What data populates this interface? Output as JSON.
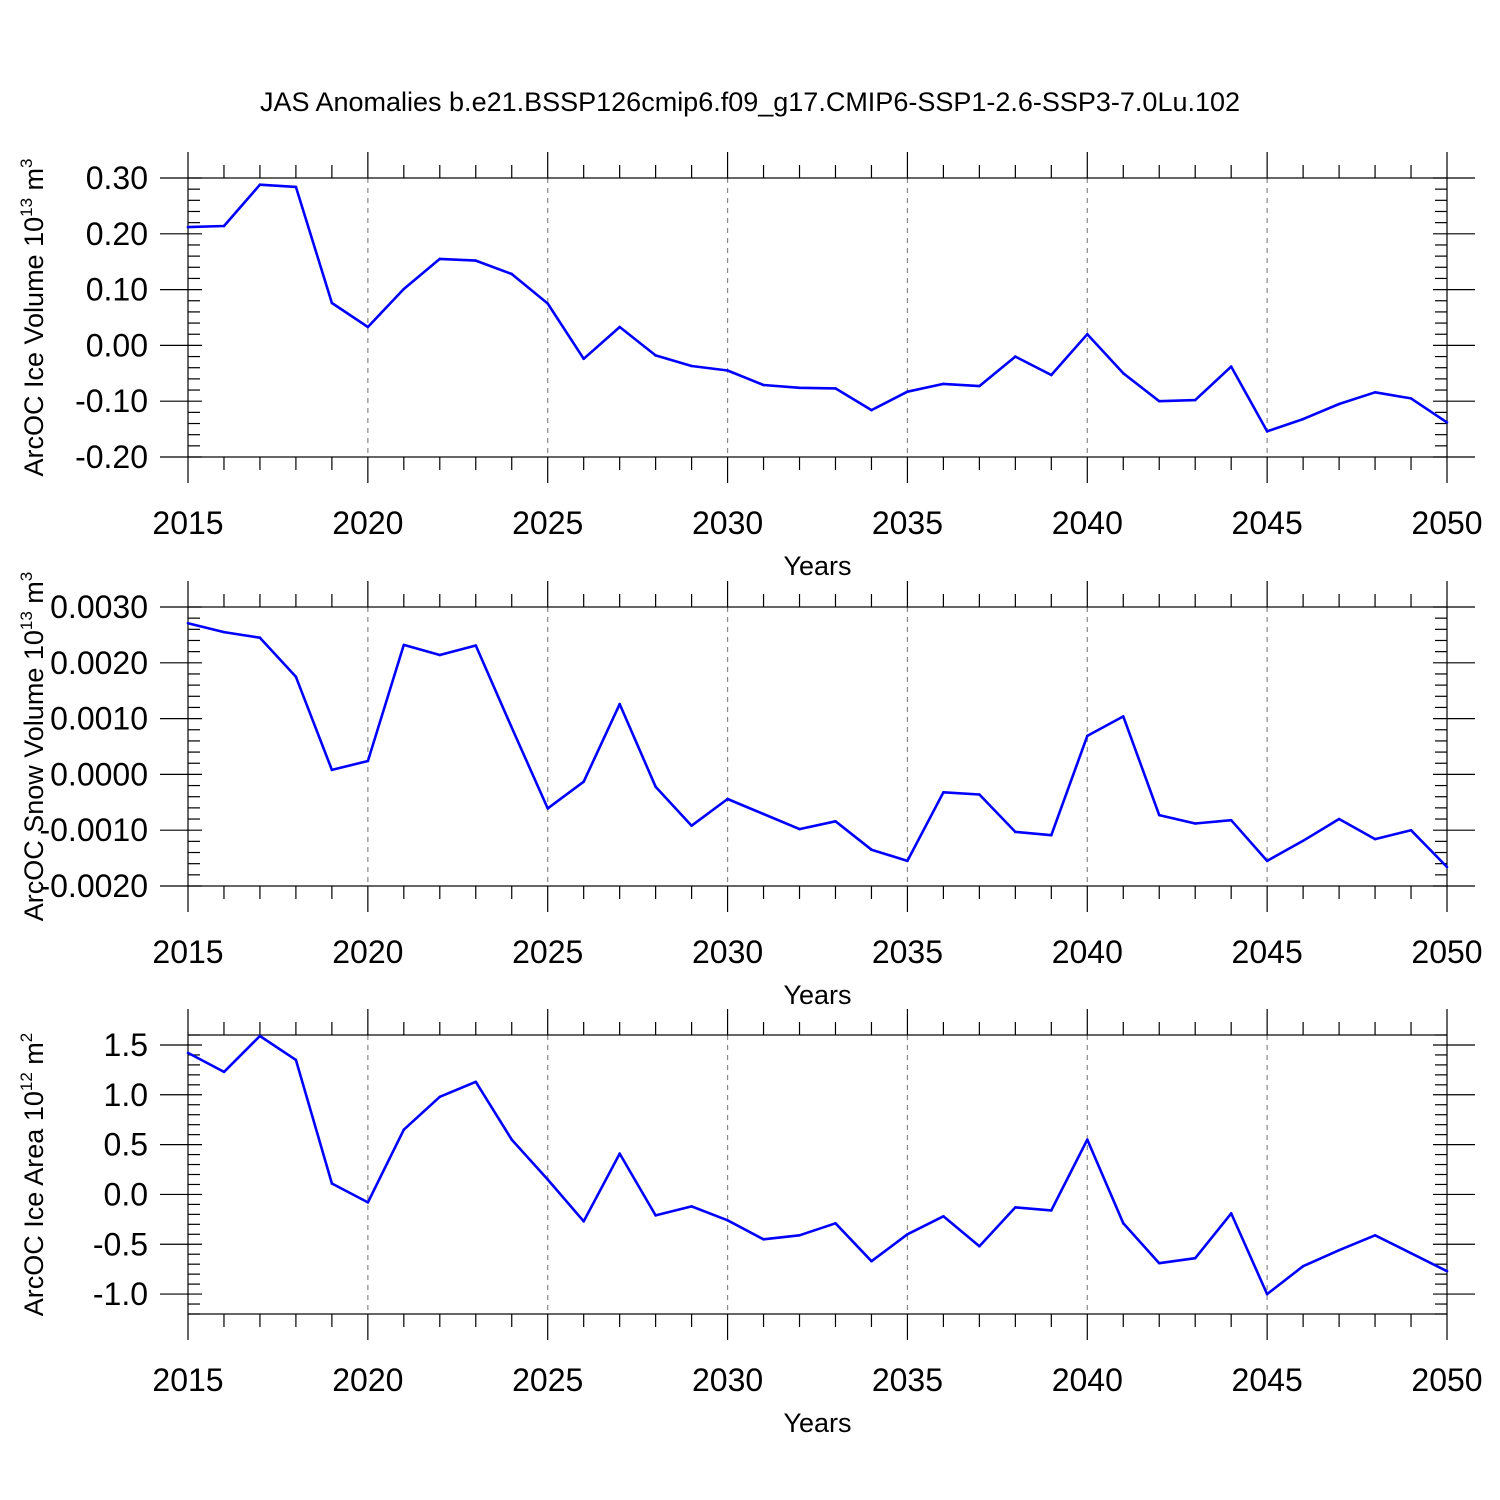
{
  "title": "JAS Anomalies b.e21.BSSP126cmip6.f09_g17.CMIP6-SSP1-2.6-SSP3-7.0Lu.102",
  "line_color": "#0000ff",
  "chart_data": [
    {
      "type": "line",
      "name": "ice-volume",
      "ylabel_main": "ArcOC Ice Volume 10",
      "ylabel_sup": "13",
      "ylabel_unit": " m",
      "ylabel_unit_sup": "3",
      "xlabel": "Years",
      "xlim": [
        2015,
        2050
      ],
      "ylim": [
        -0.2,
        0.3
      ],
      "yticks": [
        0.3,
        0.2,
        0.1,
        0.0,
        -0.1,
        -0.2
      ],
      "ytick_labels": [
        "0.30",
        "0.20",
        "0.10",
        "0.00",
        "-0.10",
        "-0.20"
      ],
      "xticks": [
        2015,
        2020,
        2025,
        2030,
        2035,
        2040,
        2045,
        2050
      ],
      "xtick_labels": [
        "2015",
        "2020",
        "2025",
        "2030",
        "2035",
        "2040",
        "2045",
        "2050"
      ],
      "x": [
        2015,
        2016,
        2017,
        2018,
        2019,
        2020,
        2021,
        2022,
        2023,
        2024,
        2025,
        2026,
        2027,
        2028,
        2029,
        2030,
        2031,
        2032,
        2033,
        2034,
        2035,
        2036,
        2037,
        2038,
        2039,
        2040,
        2041,
        2042,
        2043,
        2044,
        2045,
        2046,
        2047,
        2048,
        2049,
        2050
      ],
      "values": [
        0.212,
        0.214,
        0.288,
        0.284,
        0.076,
        0.033,
        0.101,
        0.155,
        0.152,
        0.128,
        0.075,
        -0.024,
        0.033,
        -0.018,
        -0.037,
        -0.045,
        -0.071,
        -0.076,
        -0.077,
        -0.116,
        -0.083,
        -0.069,
        -0.073,
        -0.02,
        -0.053,
        0.02,
        -0.05,
        -0.1,
        -0.098,
        -0.038,
        -0.154,
        -0.132,
        -0.105,
        -0.084,
        -0.095,
        -0.138
      ]
    },
    {
      "type": "line",
      "name": "snow-volume",
      "ylabel_main": "ArcOC Snow Volume 10",
      "ylabel_sup": "13",
      "ylabel_unit": " m",
      "ylabel_unit_sup": "3",
      "xlabel": "Years",
      "xlim": [
        2015,
        2050
      ],
      "ylim": [
        -0.002,
        0.003
      ],
      "yticks": [
        0.003,
        0.002,
        0.001,
        0.0,
        -0.001,
        -0.002
      ],
      "ytick_labels": [
        "0.0030",
        "0.0020",
        "0.0010",
        "0.0000",
        "-0.0010",
        "-0.0020"
      ],
      "xticks": [
        2015,
        2020,
        2025,
        2030,
        2035,
        2040,
        2045,
        2050
      ],
      "xtick_labels": [
        "2015",
        "2020",
        "2025",
        "2030",
        "2035",
        "2040",
        "2045",
        "2050"
      ],
      "x": [
        2015,
        2016,
        2017,
        2018,
        2019,
        2020,
        2021,
        2022,
        2023,
        2024,
        2025,
        2026,
        2027,
        2028,
        2029,
        2030,
        2031,
        2032,
        2033,
        2034,
        2035,
        2036,
        2037,
        2038,
        2039,
        2040,
        2041,
        2042,
        2043,
        2044,
        2045,
        2046,
        2047,
        2048,
        2049,
        2050
      ],
      "values": [
        0.00271,
        0.00255,
        0.00245,
        0.00175,
        8e-05,
        0.00024,
        0.00232,
        0.00214,
        0.00231,
        0.00084,
        -0.00061,
        -0.00013,
        0.00126,
        -0.00022,
        -0.00092,
        -0.00044,
        -0.00071,
        -0.00098,
        -0.00084,
        -0.00135,
        -0.00155,
        -0.00032,
        -0.00036,
        -0.00103,
        -0.00109,
        0.00069,
        0.00104,
        -0.00073,
        -0.00088,
        -0.00082,
        -0.00155,
        -0.00119,
        -0.0008,
        -0.00116,
        -0.001,
        -0.00166
      ]
    },
    {
      "type": "line",
      "name": "ice-area",
      "ylabel_main": "ArcOC Ice Area 10",
      "ylabel_sup": "12",
      "ylabel_unit": " m",
      "ylabel_unit_sup": "2",
      "xlabel": "Years",
      "xlim": [
        2015,
        2050
      ],
      "ylim": [
        -1.2,
        1.6
      ],
      "yticks": [
        1.5,
        1.0,
        0.5,
        0.0,
        -0.5,
        -1.0
      ],
      "ytick_labels": [
        "1.5",
        "1.0",
        "0.5",
        "0.0",
        "-0.5",
        "-1.0"
      ],
      "xticks": [
        2015,
        2020,
        2025,
        2030,
        2035,
        2040,
        2045,
        2050
      ],
      "xtick_labels": [
        "2015",
        "2020",
        "2025",
        "2030",
        "2035",
        "2040",
        "2045",
        "2050"
      ],
      "x": [
        2015,
        2016,
        2017,
        2018,
        2019,
        2020,
        2021,
        2022,
        2023,
        2024,
        2025,
        2026,
        2027,
        2028,
        2029,
        2030,
        2031,
        2032,
        2033,
        2034,
        2035,
        2036,
        2037,
        2038,
        2039,
        2040,
        2041,
        2042,
        2043,
        2044,
        2045,
        2046,
        2047,
        2048,
        2049,
        2050
      ],
      "values": [
        1.42,
        1.23,
        1.59,
        1.35,
        0.11,
        -0.08,
        0.65,
        0.98,
        1.13,
        0.55,
        0.15,
        -0.27,
        0.41,
        -0.21,
        -0.12,
        -0.26,
        -0.45,
        -0.41,
        -0.29,
        -0.67,
        -0.4,
        -0.22,
        -0.52,
        -0.13,
        -0.16,
        0.55,
        -0.29,
        -0.69,
        -0.64,
        -0.19,
        -1.0,
        -0.72,
        -0.56,
        -0.41,
        -0.59,
        -0.77
      ]
    }
  ]
}
